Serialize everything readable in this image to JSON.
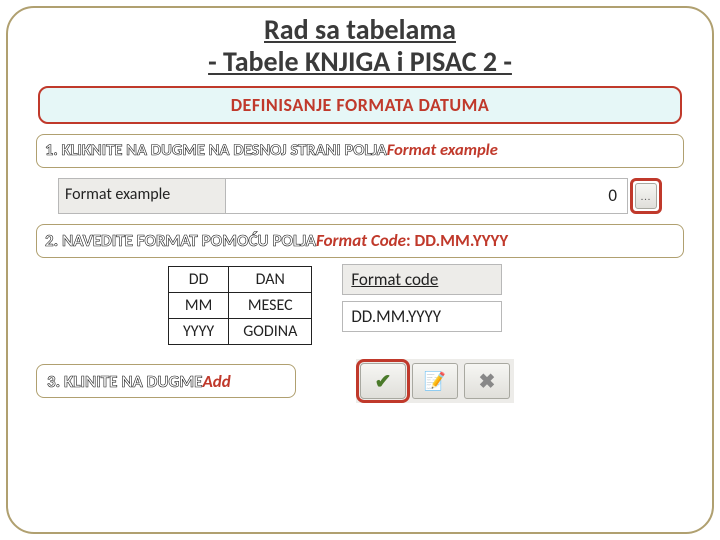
{
  "title_line1": "Rad sa tabelama",
  "title_line2": "- Tabele KNJIGA i PISAC 2 -",
  "banner": "DEFINISANJE FORMATA DATUMA",
  "step1": {
    "num": "1.",
    "prefix": " KLIKNITE NA DUGME NA DESNOJ STRANI POLJA",
    "italic": "Format example"
  },
  "format_example": {
    "label": "Format example",
    "value": "0",
    "button": "..."
  },
  "step2": {
    "num": "2.",
    "prefix": " NAVEDITE FORMAT POMOĆU POLJA",
    "italic": "Format Code",
    "suffix": ": DD.MM.YYYY"
  },
  "code_table": {
    "rows": [
      [
        "DD",
        "DAN"
      ],
      [
        "MM",
        "MESEC"
      ],
      [
        "YYYY",
        "GODINA"
      ]
    ]
  },
  "format_code": {
    "label": "Format code",
    "value": "DD.MM.YYYY"
  },
  "step3": {
    "num": "3.",
    "prefix": " KLINITE NA DUGME",
    "italic": "Add"
  },
  "buttons": {
    "check": "✔",
    "note": "📝",
    "close": "✖"
  },
  "colors": {
    "accent_red": "#c0392b",
    "frame_khaki": "#b0a070",
    "banner_bg": "#e6f7f7"
  }
}
